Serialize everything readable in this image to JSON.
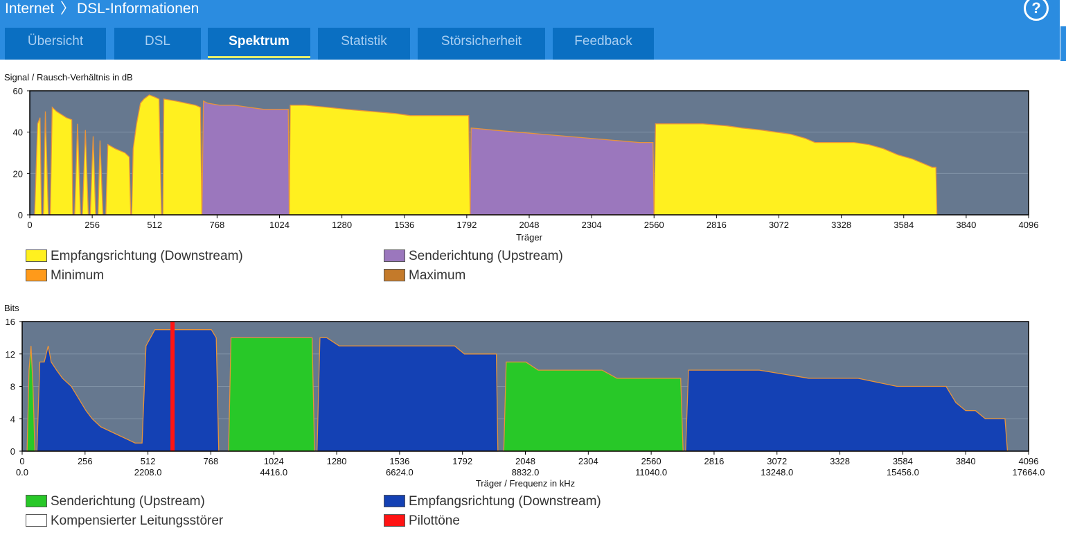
{
  "header": {
    "breadcrumb_root": "Internet",
    "breadcrumb_sep": "〉",
    "breadcrumb_page": "DSL-Informationen",
    "help_symbol": "?"
  },
  "tabs": [
    {
      "label": "Übersicht",
      "active": false
    },
    {
      "label": "DSL",
      "active": false
    },
    {
      "label": "Spektrum",
      "active": true
    },
    {
      "label": "Statistik",
      "active": false
    },
    {
      "label": "Störsicherheit",
      "active": false
    },
    {
      "label": "Feedback",
      "active": false
    }
  ],
  "colors": {
    "plot_bg": "#66788f",
    "downstream_snr": "#fff01f",
    "upstream_snr": "#9b77bd",
    "bits_up": "#28c828",
    "bits_down": "#1441b4",
    "minmax": "#e8943a",
    "pilot": "#ff1414"
  },
  "chart_data": [
    {
      "type": "area",
      "title": "Signal / Rausch-Verhältnis in dB",
      "xlabel": "Träger",
      "ylabel": "",
      "xlim": [
        0,
        4096
      ],
      "ylim": [
        0,
        60
      ],
      "xticks": [
        0,
        256,
        512,
        768,
        1024,
        1280,
        1536,
        1792,
        2048,
        2304,
        2560,
        2816,
        3072,
        3328,
        3584,
        3840,
        4096
      ],
      "yticks": [
        0,
        20,
        40,
        60
      ],
      "legend": [
        {
          "label": "Empfangsrichtung (Downstream)",
          "color": "#fff01f"
        },
        {
          "label": "Senderichtung (Upstream)",
          "color": "#9b77bd"
        },
        {
          "label": "Minimum",
          "color": "#ff9a1a"
        },
        {
          "label": "Maximum",
          "color": "#c47a2a"
        }
      ],
      "series": [
        {
          "name": "Empfangsrichtung (Downstream)",
          "color": "#fff01f",
          "points": [
            [
              20,
              0
            ],
            [
              32,
              44
            ],
            [
              42,
              47
            ],
            [
              48,
              0
            ],
            [
              56,
              0
            ],
            [
              64,
              50
            ],
            [
              76,
              0
            ],
            [
              84,
              0
            ],
            [
              92,
              52
            ],
            [
              110,
              50
            ],
            [
              150,
              47
            ],
            [
              172,
              46
            ],
            [
              176,
              0
            ],
            [
              184,
              0
            ],
            [
              196,
              44
            ],
            [
              208,
              0
            ],
            [
              216,
              0
            ],
            [
              228,
              41
            ],
            [
              240,
              0
            ],
            [
              248,
              0
            ],
            [
              260,
              38
            ],
            [
              270,
              0
            ],
            [
              280,
              0
            ],
            [
              288,
              36
            ],
            [
              300,
              0
            ],
            [
              312,
              0
            ],
            [
              320,
              34
            ],
            [
              350,
              32
            ],
            [
              390,
              30
            ],
            [
              408,
              28
            ],
            [
              414,
              0
            ],
            [
              418,
              0
            ],
            [
              424,
              32
            ],
            [
              438,
              44
            ],
            [
              454,
              54
            ],
            [
              468,
              56
            ],
            [
              490,
              58
            ],
            [
              512,
              57
            ],
            [
              530,
              56
            ],
            [
              540,
              0
            ],
            [
              546,
              0
            ],
            [
              550,
              56
            ],
            [
              600,
              55
            ],
            [
              640,
              54
            ],
            [
              680,
              53
            ],
            [
              700,
              52
            ],
            [
              706,
              0
            ]
          ]
        },
        {
          "name": "Senderichtung (Upstream)",
          "color": "#9b77bd",
          "points": [
            [
              706,
              0
            ],
            [
              712,
              55
            ],
            [
              730,
              54
            ],
            [
              780,
              53
            ],
            [
              840,
              53
            ],
            [
              900,
              52
            ],
            [
              960,
              51
            ],
            [
              1060,
              51
            ],
            [
              1064,
              0
            ]
          ]
        },
        {
          "name": "Empfangsrichtung (Downstream)",
          "color": "#fff01f",
          "points": [
            [
              1064,
              0
            ],
            [
              1068,
              53
            ],
            [
              1130,
              53
            ],
            [
              1220,
              52
            ],
            [
              1300,
              51
            ],
            [
              1400,
              50
            ],
            [
              1500,
              49
            ],
            [
              1560,
              48
            ],
            [
              1800,
              48
            ],
            [
              1806,
              0
            ]
          ]
        },
        {
          "name": "Senderichtung (Upstream)",
          "color": "#9b77bd",
          "points": [
            [
              1806,
              0
            ],
            [
              1810,
              42
            ],
            [
              1900,
              41
            ],
            [
              2000,
              40
            ],
            [
              2100,
              39
            ],
            [
              2200,
              38
            ],
            [
              2300,
              37
            ],
            [
              2400,
              36
            ],
            [
              2500,
              35
            ],
            [
              2556,
              35
            ],
            [
              2560,
              0
            ]
          ]
        },
        {
          "name": "Empfangsrichtung (Downstream)",
          "color": "#fff01f",
          "points": [
            [
              2560,
              0
            ],
            [
              2566,
              44
            ],
            [
              2640,
              44
            ],
            [
              2700,
              44
            ],
            [
              2760,
              44
            ],
            [
              2860,
              43
            ],
            [
              2920,
              42
            ],
            [
              3000,
              41
            ],
            [
              3060,
              40
            ],
            [
              3120,
              39
            ],
            [
              3180,
              37
            ],
            [
              3220,
              35
            ],
            [
              3300,
              35
            ],
            [
              3380,
              35
            ],
            [
              3440,
              34
            ],
            [
              3500,
              32
            ],
            [
              3560,
              29
            ],
            [
              3620,
              27
            ],
            [
              3660,
              25
            ],
            [
              3700,
              23
            ],
            [
              3716,
              23
            ],
            [
              3720,
              0
            ]
          ]
        }
      ]
    },
    {
      "type": "area",
      "title": "Bits",
      "xlabel": "Träger / Frequenz in kHz",
      "ylabel": "",
      "xlim": [
        0,
        4096
      ],
      "ylim": [
        0,
        16
      ],
      "xticks": [
        0,
        256,
        512,
        768,
        1024,
        1280,
        1536,
        1792,
        2048,
        2304,
        2560,
        2816,
        3072,
        3328,
        3584,
        3840,
        4096
      ],
      "xticks_khz": [
        "0.0",
        "2208.0",
        "4416.0",
        "6624.0",
        "8832.0",
        "11040.0",
        "13248.0",
        "15456.0",
        "17664.0"
      ],
      "yticks": [
        0,
        4,
        8,
        12,
        16
      ],
      "legend": [
        {
          "label": "Senderichtung (Upstream)",
          "color": "#28c828"
        },
        {
          "label": "Empfangsrichtung (Downstream)",
          "color": "#1441b4"
        },
        {
          "label": "Kompensierter Leitungsstörer",
          "color": "#ffffff"
        },
        {
          "label": "Pilottöne",
          "color": "#ff1414"
        }
      ],
      "pilot_carrier": 612,
      "series": [
        {
          "name": "Senderichtung (Upstream)",
          "color": "#28c828",
          "points": [
            [
              20,
              0
            ],
            [
              28,
              10
            ],
            [
              36,
              13
            ],
            [
              44,
              8
            ],
            [
              52,
              0
            ]
          ]
        },
        {
          "name": "Empfangsrichtung (Downstream)",
          "color": "#1441b4",
          "points": [
            [
              60,
              0
            ],
            [
              72,
              11
            ],
            [
              90,
              11
            ],
            [
              106,
              13
            ],
            [
              118,
              11
            ],
            [
              140,
              10
            ],
            [
              164,
              9
            ],
            [
              200,
              8
            ],
            [
              220,
              7
            ],
            [
              240,
              6
            ],
            [
              260,
              5
            ],
            [
              285,
              4
            ],
            [
              320,
              3
            ],
            [
              390,
              2
            ],
            [
              460,
              1
            ],
            [
              488,
              1
            ],
            [
              504,
              13
            ],
            [
              540,
              15
            ],
            [
              600,
              15
            ],
            [
              620,
              15
            ],
            [
              720,
              15
            ],
            [
              770,
              15
            ],
            [
              790,
              14
            ],
            [
              800,
              0
            ]
          ]
        },
        {
          "name": "Senderichtung (Upstream)",
          "color": "#28c828",
          "points": [
            [
              840,
              0
            ],
            [
              850,
              14
            ],
            [
              900,
              14
            ],
            [
              1000,
              14
            ],
            [
              1120,
              14
            ],
            [
              1180,
              14
            ],
            [
              1190,
              0
            ]
          ]
        },
        {
          "name": "Empfangsrichtung (Downstream)",
          "color": "#1441b4",
          "points": [
            [
              1200,
              0
            ],
            [
              1212,
              14
            ],
            [
              1240,
              14
            ],
            [
              1290,
              13
            ],
            [
              1400,
              13
            ],
            [
              1500,
              13
            ],
            [
              1760,
              13
            ],
            [
              1800,
              12
            ],
            [
              1930,
              12
            ],
            [
              1936,
              0
            ]
          ]
        },
        {
          "name": "Senderichtung (Upstream)",
          "color": "#28c828",
          "points": [
            [
              1960,
              0
            ],
            [
              1970,
              11
            ],
            [
              2050,
              11
            ],
            [
              2100,
              10
            ],
            [
              2280,
              10
            ],
            [
              2360,
              10
            ],
            [
              2420,
              9
            ],
            [
              2680,
              9
            ],
            [
              2690,
              0
            ]
          ]
        },
        {
          "name": "Empfangsrichtung (Downstream)",
          "color": "#1441b4",
          "points": [
            [
              2700,
              0
            ],
            [
              2712,
              10
            ],
            [
              3000,
              10
            ],
            [
              3200,
              9
            ],
            [
              3400,
              9
            ],
            [
              3560,
              8
            ],
            [
              3620,
              8
            ],
            [
              3700,
              8
            ],
            [
              3760,
              8
            ],
            [
              3780,
              7
            ],
            [
              3800,
              6
            ],
            [
              3840,
              5
            ],
            [
              3880,
              5
            ],
            [
              3920,
              4
            ],
            [
              3970,
              4
            ],
            [
              4000,
              4
            ],
            [
              4010,
              0
            ]
          ]
        }
      ]
    }
  ]
}
